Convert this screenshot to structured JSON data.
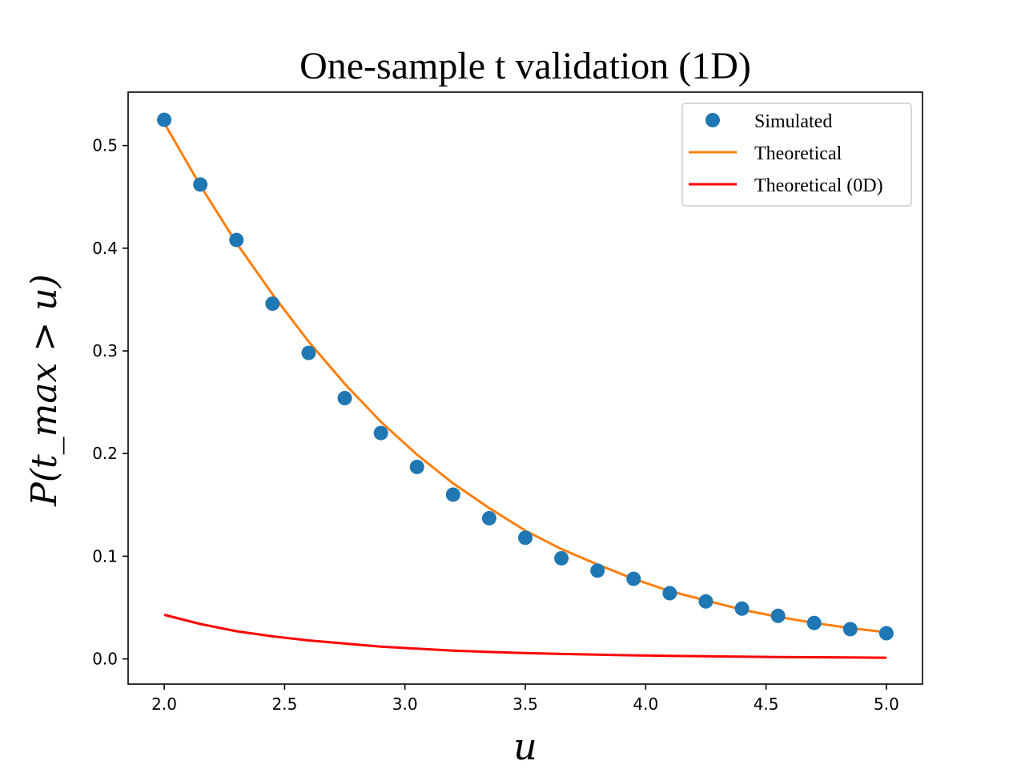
{
  "chart_data": {
    "type": "line",
    "title": "One-sample t validation (1D)",
    "xlabel": "u",
    "ylabel": "P(t_max > u)",
    "xlim": [
      1.85,
      5.15
    ],
    "ylim": [
      -0.0245,
      0.552
    ],
    "xticks": [
      2.0,
      2.5,
      3.0,
      3.5,
      4.0,
      4.5,
      5.0
    ],
    "xtick_labels": [
      "2.0",
      "2.5",
      "3.0",
      "3.5",
      "4.0",
      "4.5",
      "5.0"
    ],
    "yticks": [
      0.0,
      0.1,
      0.2,
      0.3,
      0.4,
      0.5
    ],
    "ytick_labels": [
      "0.0",
      "0.1",
      "0.2",
      "0.3",
      "0.4",
      "0.5"
    ],
    "grid": false,
    "legend_position": "top-right",
    "series": [
      {
        "name": "Simulated",
        "kind": "scatter",
        "color": "#1f77b4",
        "x": [
          2.0,
          2.15,
          2.3,
          2.45,
          2.6,
          2.75,
          2.9,
          3.05,
          3.2,
          3.35,
          3.5,
          3.65,
          3.8,
          3.95,
          4.1,
          4.25,
          4.4,
          4.55,
          4.7,
          4.85,
          5.0
        ],
        "y": [
          0.525,
          0.462,
          0.408,
          0.346,
          0.298,
          0.254,
          0.22,
          0.187,
          0.16,
          0.137,
          0.118,
          0.098,
          0.086,
          0.078,
          0.064,
          0.056,
          0.049,
          0.042,
          0.035,
          0.029,
          0.025
        ]
      },
      {
        "name": "Theoretical",
        "kind": "line",
        "color": "#ff7f0e",
        "x": [
          2.0,
          2.15,
          2.3,
          2.45,
          2.6,
          2.75,
          2.9,
          3.05,
          3.2,
          3.35,
          3.5,
          3.65,
          3.8,
          3.95,
          4.1,
          4.25,
          4.4,
          4.55,
          4.7,
          4.85,
          5.0
        ],
        "y": [
          0.522,
          0.461,
          0.405,
          0.355,
          0.309,
          0.268,
          0.231,
          0.199,
          0.171,
          0.147,
          0.125,
          0.107,
          0.092,
          0.078,
          0.066,
          0.057,
          0.048,
          0.041,
          0.035,
          0.03,
          0.026
        ]
      },
      {
        "name": "Theoretical (0D)",
        "kind": "line",
        "color": "#ff0000",
        "x": [
          2.0,
          2.15,
          2.3,
          2.45,
          2.6,
          2.75,
          2.9,
          3.05,
          3.2,
          3.35,
          3.5,
          3.65,
          3.8,
          3.95,
          4.1,
          4.25,
          4.4,
          4.55,
          4.7,
          4.85,
          5.0
        ],
        "y": [
          0.043,
          0.034,
          0.027,
          0.022,
          0.018,
          0.015,
          0.012,
          0.01,
          0.008,
          0.0068,
          0.0057,
          0.0048,
          0.0041,
          0.0035,
          0.003,
          0.0026,
          0.0022,
          0.0019,
          0.0016,
          0.0014,
          0.0012
        ]
      }
    ]
  }
}
